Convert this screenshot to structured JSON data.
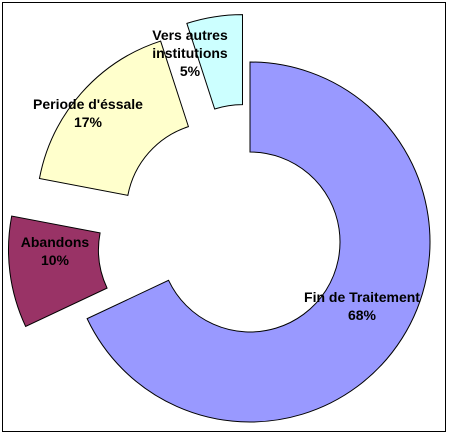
{
  "chart_data": {
    "type": "donut",
    "categories": [
      "Fin de Traitement",
      "Abandons",
      "Periode d'éssale",
      "Vers autres institutions"
    ],
    "values": [
      68,
      10,
      17,
      5
    ],
    "value_labels": [
      "68%",
      "10%",
      "17%",
      "5%"
    ],
    "colors": [
      "#9999ff",
      "#993366",
      "#ffffcc",
      "#ccffff"
    ]
  }
}
